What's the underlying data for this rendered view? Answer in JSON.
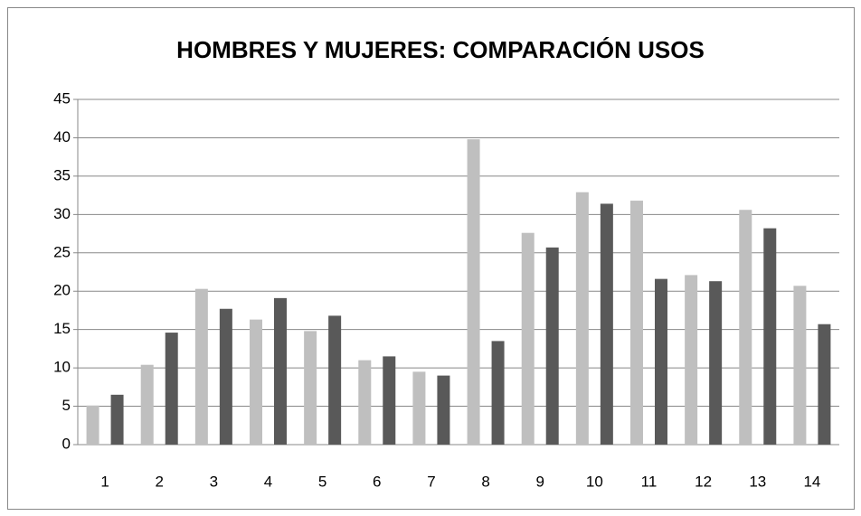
{
  "chart_data": {
    "type": "bar",
    "title": "HOMBRES Y MUJERES: COMPARACIÓN USOS",
    "categories": [
      "1",
      "2",
      "3",
      "4",
      "5",
      "6",
      "7",
      "8",
      "9",
      "10",
      "11",
      "12",
      "13",
      "14"
    ],
    "series": [
      {
        "color": "#bfbfbf",
        "values": [
          5.1,
          10.4,
          20.3,
          16.3,
          14.8,
          11.0,
          9.5,
          39.8,
          27.6,
          32.9,
          31.8,
          22.1,
          30.6,
          20.7
        ]
      },
      {
        "color": "#595959",
        "values": [
          6.5,
          14.6,
          17.7,
          19.1,
          16.8,
          11.5,
          9.0,
          13.5,
          25.7,
          31.4,
          21.6,
          21.3,
          28.2,
          15.7
        ]
      }
    ],
    "ylim": [
      0,
      45
    ],
    "yticks": [
      0,
      5,
      10,
      15,
      20,
      25,
      30,
      35,
      40,
      45
    ],
    "grid": true
  }
}
